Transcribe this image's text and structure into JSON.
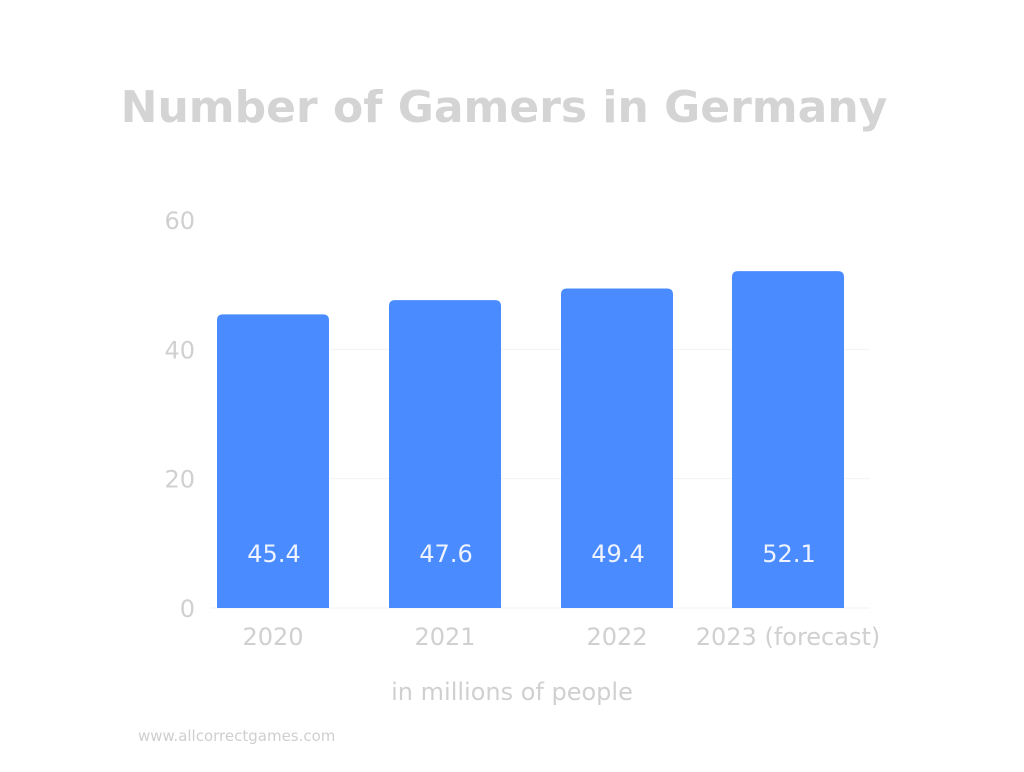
{
  "chart_data": {
    "type": "bar",
    "title": "Number of Gamers in Germany",
    "categories": [
      "2020",
      "2021",
      "2022",
      "2023 (forecast)"
    ],
    "values": [
      45.4,
      47.6,
      49.4,
      52.1
    ],
    "value_labels": [
      "45.4",
      "47.6",
      "49.4",
      "52.1"
    ],
    "xlabel": "in millions of people",
    "ylabel": "",
    "ylim": [
      0,
      60
    ],
    "yticks": [
      0,
      20,
      40,
      60
    ],
    "grid": true,
    "legend": "none"
  },
  "footer": {
    "source": "www.allcorrectgames.com"
  },
  "colors": {
    "bar": "#4a8cff",
    "title": "#d4d4d4",
    "axis_text": "#d0d0d0",
    "value_label": "#eef3ff",
    "grid": "#f3f3f3",
    "footer": "#cfcfcf"
  }
}
